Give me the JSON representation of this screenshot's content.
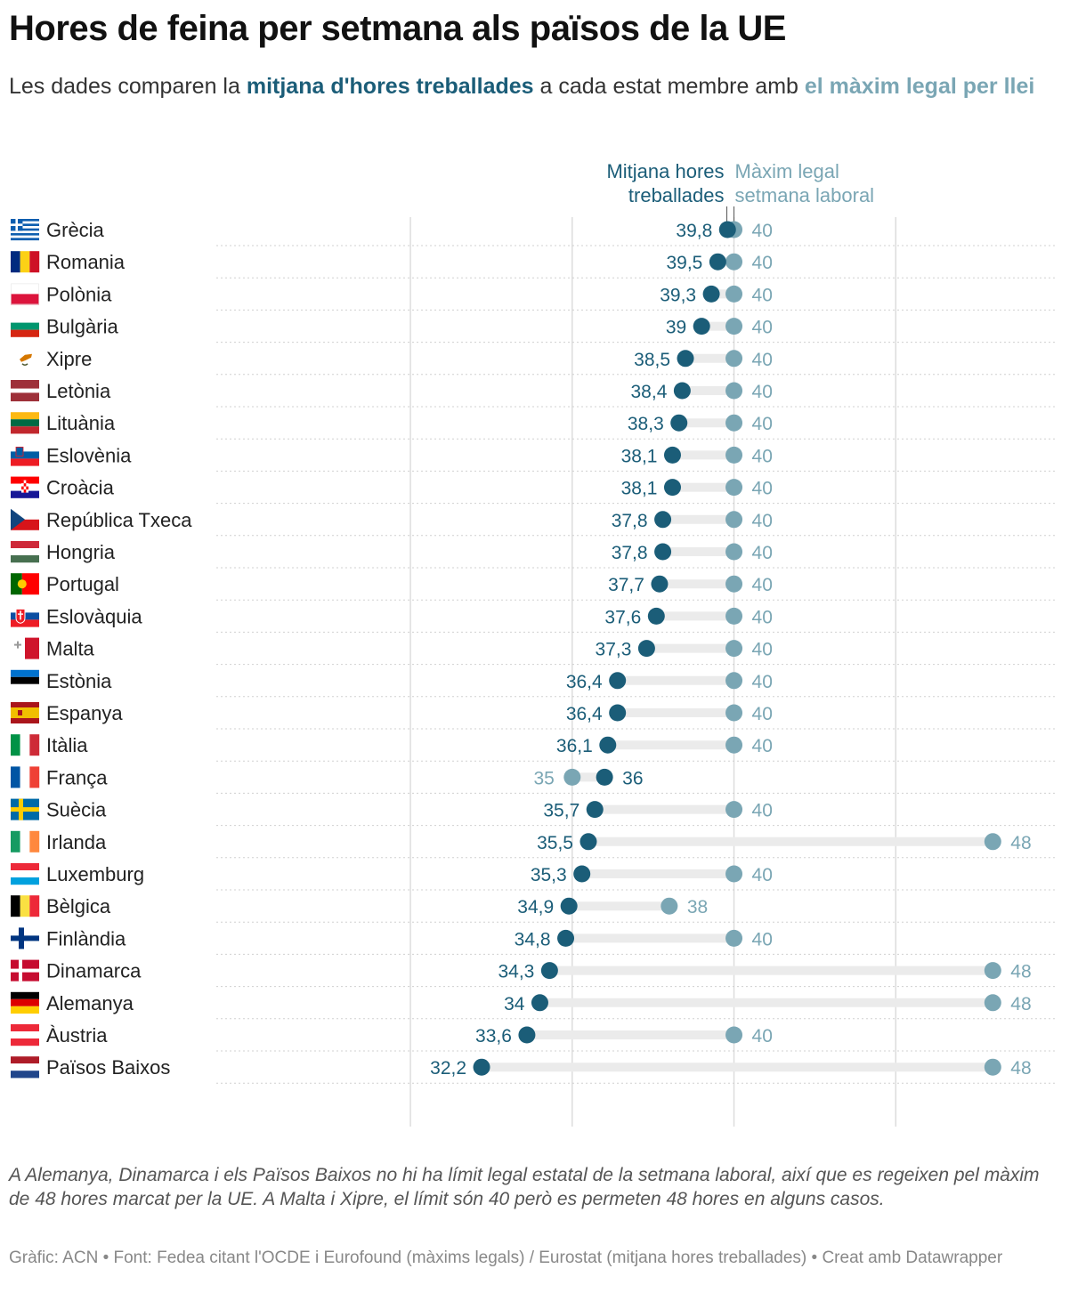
{
  "title": "Hores de feina per setmana als països de la UE",
  "subtitle": {
    "prefix": "Les dades comparen la ",
    "avg_label": "mitjana d'hores treballades",
    "middle": " a cada estat membre amb ",
    "max_label": "el màxim legal per llei"
  },
  "colors": {
    "avg": "#1b5d78",
    "max": "#7aa6b4",
    "bar": "#ebebeb",
    "grid": "#dddddd"
  },
  "chart_data": {
    "type": "dot-range",
    "xlim": [
      24,
      50
    ],
    "gridlines": [
      30,
      35,
      40,
      45
    ],
    "series": [
      {
        "name": "Mitjana hores treballades",
        "key": "avg"
      },
      {
        "name": "Màxim legal setmana laboral",
        "key": "max"
      }
    ],
    "legend": {
      "avg": [
        "Mitjana hores",
        "treballades"
      ],
      "max": [
        "Màxim legal",
        "setmana laboral"
      ]
    },
    "rows": [
      {
        "country": "Grècia",
        "flag": "GR",
        "avg": 39.8,
        "max": 40,
        "avg_label": "39,8",
        "max_label": "40"
      },
      {
        "country": "Romania",
        "flag": "RO",
        "avg": 39.5,
        "max": 40,
        "avg_label": "39,5",
        "max_label": "40"
      },
      {
        "country": "Polònia",
        "flag": "PL",
        "avg": 39.3,
        "max": 40,
        "avg_label": "39,3",
        "max_label": "40"
      },
      {
        "country": "Bulgària",
        "flag": "BG",
        "avg": 39,
        "max": 40,
        "avg_label": "39",
        "max_label": "40"
      },
      {
        "country": "Xipre",
        "flag": "CY",
        "avg": 38.5,
        "max": 40,
        "avg_label": "38,5",
        "max_label": "40"
      },
      {
        "country": "Letònia",
        "flag": "LV",
        "avg": 38.4,
        "max": 40,
        "avg_label": "38,4",
        "max_label": "40"
      },
      {
        "country": "Lituània",
        "flag": "LT",
        "avg": 38.3,
        "max": 40,
        "avg_label": "38,3",
        "max_label": "40"
      },
      {
        "country": "Eslovènia",
        "flag": "SI",
        "avg": 38.1,
        "max": 40,
        "avg_label": "38,1",
        "max_label": "40"
      },
      {
        "country": "Croàcia",
        "flag": "HR",
        "avg": 38.1,
        "max": 40,
        "avg_label": "38,1",
        "max_label": "40"
      },
      {
        "country": "República Txeca",
        "flag": "CZ",
        "avg": 37.8,
        "max": 40,
        "avg_label": "37,8",
        "max_label": "40"
      },
      {
        "country": "Hongria",
        "flag": "HU",
        "avg": 37.8,
        "max": 40,
        "avg_label": "37,8",
        "max_label": "40"
      },
      {
        "country": "Portugal",
        "flag": "PT",
        "avg": 37.7,
        "max": 40,
        "avg_label": "37,7",
        "max_label": "40"
      },
      {
        "country": "Eslovàquia",
        "flag": "SK",
        "avg": 37.6,
        "max": 40,
        "avg_label": "37,6",
        "max_label": "40"
      },
      {
        "country": "Malta",
        "flag": "MT",
        "avg": 37.3,
        "max": 40,
        "avg_label": "37,3",
        "max_label": "40"
      },
      {
        "country": "Estònia",
        "flag": "EE",
        "avg": 36.4,
        "max": 40,
        "avg_label": "36,4",
        "max_label": "40"
      },
      {
        "country": "Espanya",
        "flag": "ES",
        "avg": 36.4,
        "max": 40,
        "avg_label": "36,4",
        "max_label": "40"
      },
      {
        "country": "Itàlia",
        "flag": "IT",
        "avg": 36.1,
        "max": 40,
        "avg_label": "36,1",
        "max_label": "40"
      },
      {
        "country": "França",
        "flag": "FR",
        "avg": 36,
        "max": 35,
        "avg_label": "36",
        "max_label": "35"
      },
      {
        "country": "Suècia",
        "flag": "SE",
        "avg": 35.7,
        "max": 40,
        "avg_label": "35,7",
        "max_label": "40"
      },
      {
        "country": "Irlanda",
        "flag": "IE",
        "avg": 35.5,
        "max": 48,
        "avg_label": "35,5",
        "max_label": "48"
      },
      {
        "country": "Luxemburg",
        "flag": "LU",
        "avg": 35.3,
        "max": 40,
        "avg_label": "35,3",
        "max_label": "40"
      },
      {
        "country": "Bèlgica",
        "flag": "BE",
        "avg": 34.9,
        "max": 38,
        "avg_label": "34,9",
        "max_label": "38"
      },
      {
        "country": "Finlàndia",
        "flag": "FI",
        "avg": 34.8,
        "max": 40,
        "avg_label": "34,8",
        "max_label": "40"
      },
      {
        "country": "Dinamarca",
        "flag": "DK",
        "avg": 34.3,
        "max": 48,
        "avg_label": "34,3",
        "max_label": "48"
      },
      {
        "country": "Alemanya",
        "flag": "DE",
        "avg": 34,
        "max": 48,
        "avg_label": "34",
        "max_label": "48"
      },
      {
        "country": "Àustria",
        "flag": "AT",
        "avg": 33.6,
        "max": 40,
        "avg_label": "33,6",
        "max_label": "40"
      },
      {
        "country": "Països Baixos",
        "flag": "NL",
        "avg": 32.2,
        "max": 48,
        "avg_label": "32,2",
        "max_label": "48"
      }
    ]
  },
  "notes": "A Alemanya, Dinamarca i els Països Baixos no hi ha límit legal estatal de la setmana laboral, així que es regeixen pel màxim de 48 hores marcat per la UE. A Malta i Xipre, el límit són 40 però es permeten 48 hores en alguns casos.",
  "source": "Gràfic: ACN • Font: Fedea citant l'OCDE i Eurofound (màxims legals) / Eurostat (mitjana hores treballades) • Creat amb Datawrapper"
}
